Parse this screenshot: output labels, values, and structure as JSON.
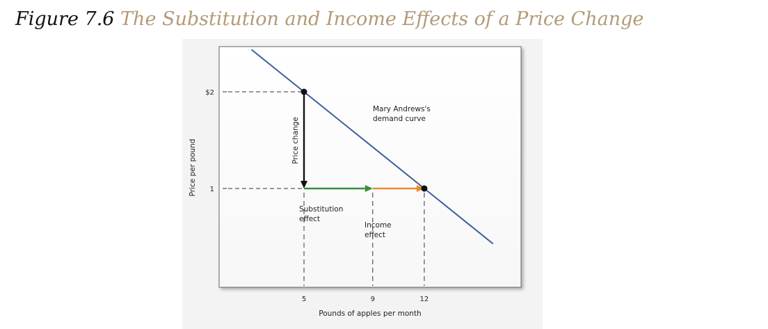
{
  "figure": {
    "number": "Figure 7.6",
    "title": "The Substitution and Income Effects of a Price Change"
  },
  "chart_data": {
    "type": "line",
    "xlabel": "Pounds of apples per month",
    "ylabel": "Price per pound",
    "x_ticks": [
      "5",
      "9",
      "12"
    ],
    "y_ticks": [
      "$2",
      "1"
    ],
    "series": [
      {
        "name": "Mary Andrews's demand curve",
        "color": "#3e5f9e",
        "points": [
          {
            "x": 5,
            "y": 2
          },
          {
            "x": 12,
            "y": 1
          }
        ]
      }
    ],
    "points": [
      {
        "x": 5,
        "y": 2
      },
      {
        "x": 12,
        "y": 1
      }
    ],
    "arrows": [
      {
        "name": "price-change",
        "from": {
          "x": 5,
          "y": 2
        },
        "to": {
          "x": 5,
          "y": 1
        },
        "color": "#111111"
      },
      {
        "name": "substitution-effect",
        "from": {
          "x": 5,
          "y": 1
        },
        "to": {
          "x": 9,
          "y": 1
        },
        "color": "#3c8c3c"
      },
      {
        "name": "income-effect",
        "from": {
          "x": 9,
          "y": 1
        },
        "to": {
          "x": 12,
          "y": 1
        },
        "color": "#ef8a2c"
      }
    ],
    "annotations": {
      "curve_label_line1": "Mary Andrews's",
      "curve_label_line2": "demand curve",
      "price_change": "Price change",
      "substitution_line1": "Substitution",
      "substitution_line2": "effect",
      "income_line1": "Income",
      "income_line2": "effect"
    },
    "grid": false,
    "legend": "none"
  }
}
